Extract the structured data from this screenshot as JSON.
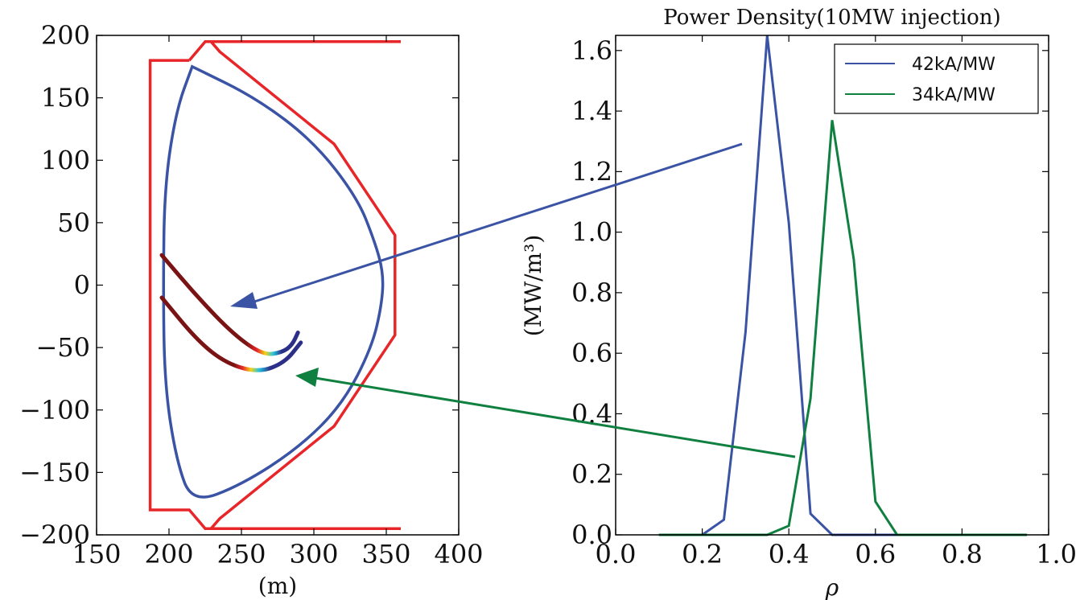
{
  "chart_data": [
    {
      "type": "line",
      "xlabel": "(m)",
      "ylabel": "",
      "xlim": [
        150,
        400
      ],
      "ylim": [
        -200,
        200
      ],
      "xticks": [
        "150",
        "200",
        "250",
        "300",
        "350",
        "400"
      ],
      "yticks": [
        "200",
        "150",
        "100",
        "50",
        "0",
        "−50",
        "−100",
        "−150",
        "−200"
      ],
      "colors": {
        "wall": "#e8262a",
        "boundary": "#3a53a4",
        "ray_dark": "#7a1414",
        "ray_end": "#2b2f87"
      },
      "series": [
        {
          "x": [
            214,
            187,
            187,
            214,
            225,
            360,
            229,
            235,
            314,
            356,
            356,
            314,
            235,
            229,
            360,
            225,
            214
          ],
          "y": [
            180,
            180,
            -180,
            -180,
            -195,
            -195,
            -195,
            -187,
            -113,
            -40,
            40,
            113,
            187,
            195,
            195,
            195,
            180
          ]
        },
        {
          "x": [
            216,
            260,
            300,
            330,
            342,
            348,
            347,
            340,
            320,
            290,
            250,
            216,
            205,
            197,
            196,
            197,
            205,
            216
          ],
          "y": [
            175,
            150,
            115,
            70,
            35,
            10,
            -15,
            -50,
            -95,
            -130,
            -160,
            -175,
            -140,
            -80,
            0,
            80,
            140,
            175
          ]
        },
        {
          "x": [
            195,
            220,
            245,
            265,
            278,
            285,
            289
          ],
          "y": [
            24,
            -10,
            -40,
            -56,
            -54,
            -48,
            -38
          ]
        },
        {
          "x": [
            195,
            220,
            240,
            262,
            280,
            291
          ],
          "y": [
            -10,
            -45,
            -63,
            -70,
            -62,
            -46
          ]
        }
      ]
    },
    {
      "type": "line",
      "title": "Power Density(10MW injection)",
      "xlabel": "ρ",
      "ylabel": "(MW/m³)",
      "xlim": [
        0.0,
        1.0
      ],
      "ylim": [
        0.0,
        1.65
      ],
      "xticks": [
        "0.0",
        "0.2",
        "0.4",
        "0.6",
        "0.8",
        "1.0"
      ],
      "yticks": [
        "1.6",
        "1.4",
        "1.2",
        "1.0",
        "0.8",
        "0.6",
        "0.4",
        "0.2",
        "0.0"
      ],
      "legend": "top-right",
      "series": [
        {
          "name": "42kA/MW",
          "color": "#3a53a4",
          "x": [
            0.1,
            0.15,
            0.2,
            0.25,
            0.3,
            0.35,
            0.4,
            0.45,
            0.5,
            0.55,
            0.6,
            0.65,
            0.7,
            0.75,
            0.8,
            0.85,
            0.9,
            0.95
          ],
          "y": [
            0,
            0,
            0,
            0.05,
            0.67,
            1.65,
            1.03,
            0.07,
            0,
            0,
            0,
            0,
            0,
            0,
            0,
            0,
            0,
            0
          ]
        },
        {
          "name": "34kA/MW",
          "color": "#108040",
          "x": [
            0.1,
            0.15,
            0.2,
            0.25,
            0.3,
            0.35,
            0.4,
            0.45,
            0.5,
            0.55,
            0.6,
            0.65,
            0.7,
            0.75,
            0.8,
            0.85,
            0.9,
            0.95
          ],
          "y": [
            0,
            0,
            0,
            0,
            0,
            0,
            0.03,
            0.45,
            1.37,
            0.91,
            0.11,
            0,
            0,
            0,
            0,
            0,
            0,
            0
          ]
        }
      ]
    }
  ]
}
